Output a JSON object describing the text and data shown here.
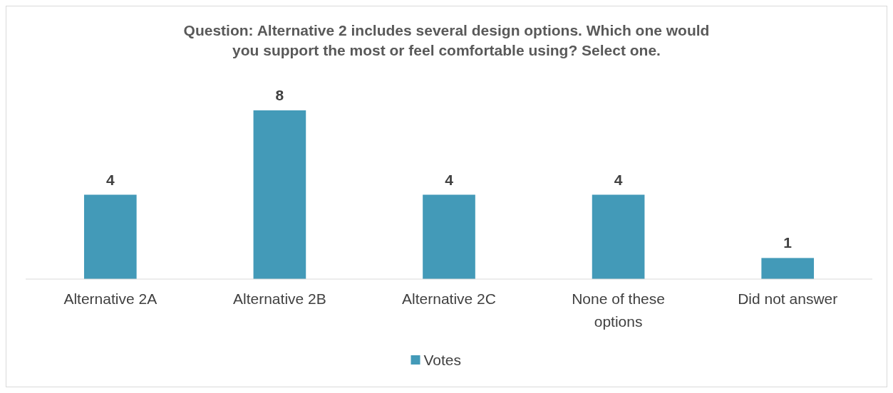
{
  "chart_data": {
    "type": "bar",
    "title": "Question: Alternative 2 includes several design options. Which one would you support the most or feel comfortable using? Select one.",
    "categories": [
      "Alternative 2A",
      "Alternative 2B",
      "Alternative 2C",
      "None of these options",
      "Did not answer"
    ],
    "series": [
      {
        "name": "Votes",
        "color": "#439ab8",
        "values": [
          4,
          8,
          4,
          4,
          1
        ]
      }
    ],
    "data_labels": true,
    "legend": "bottom",
    "grid": false
  }
}
